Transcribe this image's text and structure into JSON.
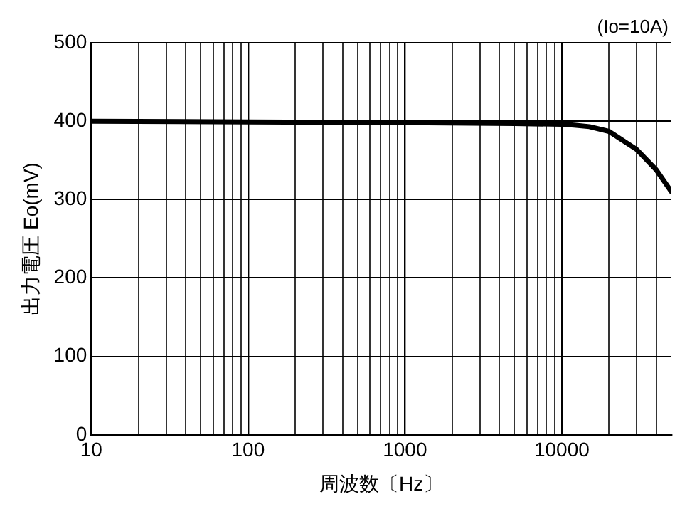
{
  "chart_data": {
    "type": "line",
    "xlabel": "周波数〔Hz〕",
    "ylabel": "出力電圧 Eo(mV)",
    "annotations": [
      "(Io=10A)"
    ],
    "log": "x",
    "grid": true,
    "legend": false,
    "marker": "none",
    "line_style": "solid",
    "x": [
      10,
      100,
      1000,
      5000,
      10000,
      12000,
      15000,
      20000,
      30000,
      40000,
      50000
    ],
    "series": [
      {
        "color": "#000000",
        "values": [
          400,
          399,
          398,
          397,
          396,
          395,
          393,
          387,
          364,
          338,
          310
        ]
      }
    ],
    "xlim": [
      10,
      50000
    ],
    "ylim": [
      0,
      500
    ],
    "yticks": [
      0,
      100,
      200,
      300,
      400,
      500
    ],
    "xticks": [
      10,
      {
        "value": 20,
        "label": null
      },
      {
        "value": 30,
        "label": null
      },
      {
        "value": 40,
        "label": null
      },
      {
        "value": 50,
        "label": null
      },
      {
        "value": 60,
        "label": null
      },
      {
        "value": 70,
        "label": null
      },
      {
        "value": 80,
        "label": null
      },
      {
        "value": 90,
        "label": null
      },
      100,
      {
        "value": 200,
        "label": null
      },
      {
        "value": 300,
        "label": null
      },
      {
        "value": 400,
        "label": null
      },
      {
        "value": 500,
        "label": null
      },
      {
        "value": 600,
        "label": null
      },
      {
        "value": 700,
        "label": null
      },
      {
        "value": 800,
        "label": null
      },
      {
        "value": 900,
        "label": null
      },
      1000,
      {
        "value": 2000,
        "label": null
      },
      {
        "value": 3000,
        "label": null
      },
      {
        "value": 4000,
        "label": null
      },
      {
        "value": 5000,
        "label": null
      },
      {
        "value": 6000,
        "label": null
      },
      {
        "value": 7000,
        "label": null
      },
      {
        "value": 8000,
        "label": null
      },
      {
        "value": 9000,
        "label": null
      },
      10000,
      {
        "value": 20000,
        "label": null
      },
      {
        "value": 30000,
        "label": null
      },
      {
        "value": 40000,
        "label": null
      }
    ]
  }
}
